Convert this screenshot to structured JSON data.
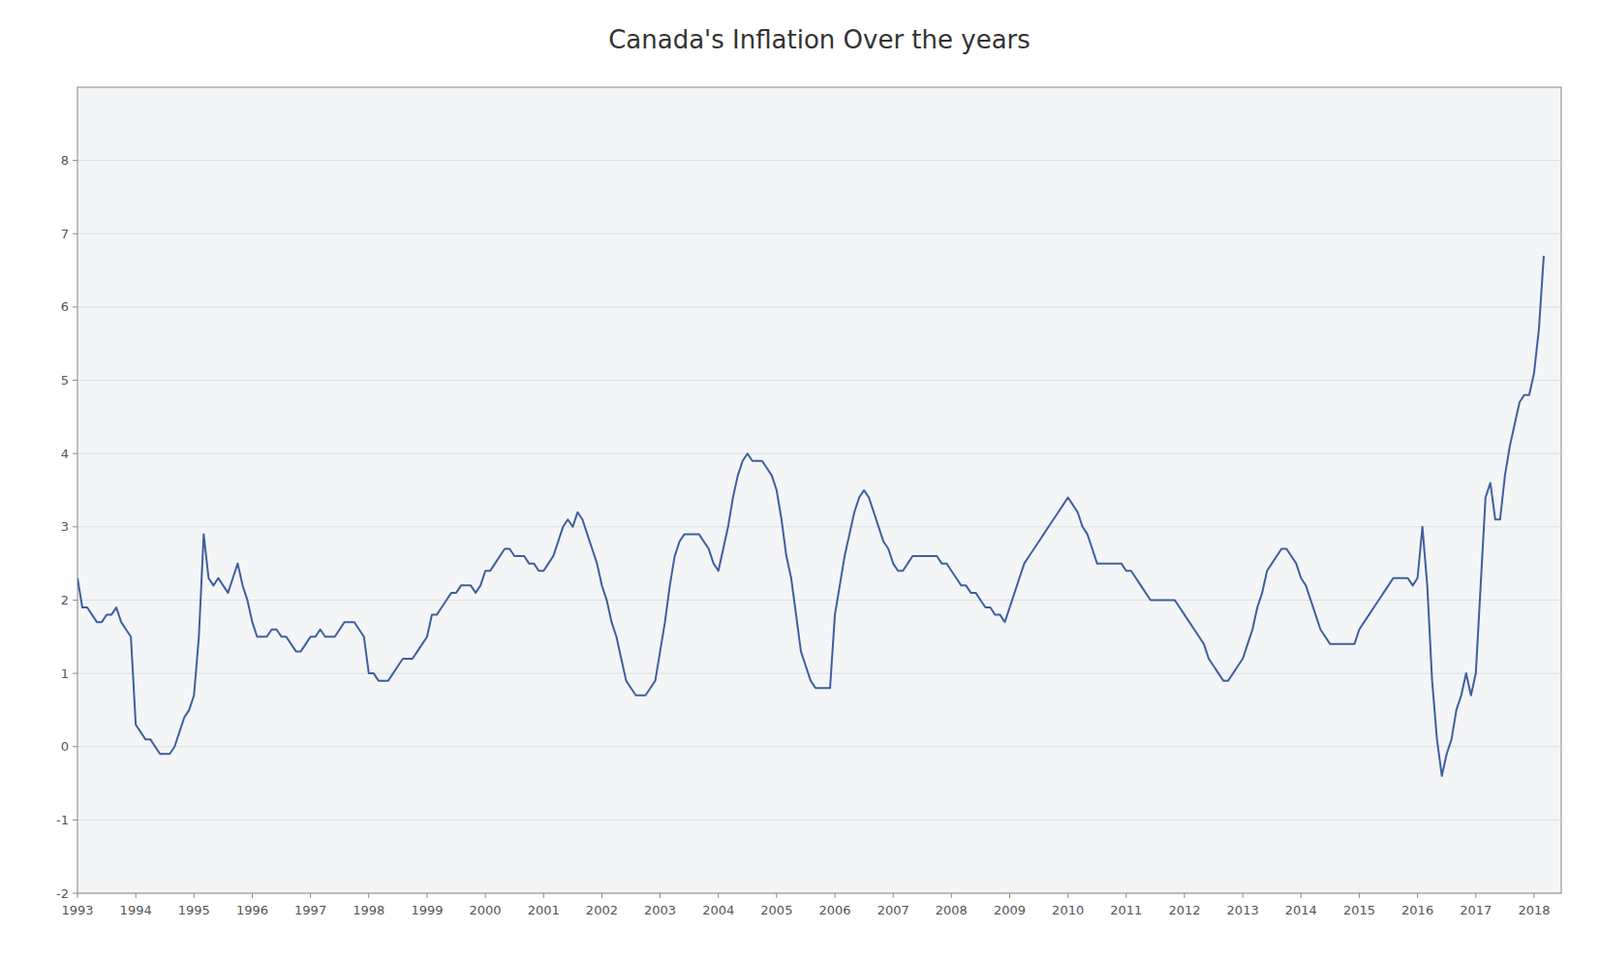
{
  "chart_data": {
    "type": "line",
    "title": "Canada's Inflation Over the years",
    "color": "#3F5F9F",
    "x": [
      1993,
      1993.083333,
      1993.166667,
      1993.25,
      1993.333333,
      1993.416667,
      1993.5,
      1993.583333,
      1993.666667,
      1993.75,
      1993.833333,
      1993.916667,
      1994,
      1994.083333,
      1994.166667,
      1994.25,
      1994.333333,
      1994.416667,
      1994.5,
      1994.583333,
      1994.666667,
      1994.75,
      1994.833333,
      1994.916667,
      1995,
      1995.083333,
      1995.166667,
      1995.25,
      1995.333333,
      1995.416667,
      1995.5,
      1995.583333,
      1995.666667,
      1995.75,
      1995.833333,
      1995.916667,
      1996,
      1996.083333,
      1996.166667,
      1996.25,
      1996.333333,
      1996.416667,
      1996.5,
      1996.583333,
      1996.666667,
      1996.75,
      1996.833333,
      1996.916667,
      1997,
      1997.083333,
      1997.166667,
      1997.25,
      1997.333333,
      1997.416667,
      1997.5,
      1997.583333,
      1997.666667,
      1997.75,
      1997.833333,
      1997.916667,
      1998,
      1998.083333,
      1998.166667,
      1998.25,
      1998.333333,
      1998.416667,
      1998.5,
      1998.583333,
      1998.666667,
      1998.75,
      1998.833333,
      1998.916667,
      1999,
      1999.083333,
      1999.166667,
      1999.25,
      1999.333333,
      1999.416667,
      1999.5,
      1999.583333,
      1999.666667,
      1999.75,
      1999.833333,
      1999.916667,
      2000,
      2000.083333,
      2000.166667,
      2000.25,
      2000.333333,
      2000.416667,
      2000.5,
      2000.583333,
      2000.666667,
      2000.75,
      2000.833333,
      2000.916667,
      2001,
      2001.083333,
      2001.166667,
      2001.25,
      2001.333333,
      2001.416667,
      2001.5,
      2001.583333,
      2001.666667,
      2001.75,
      2001.833333,
      2001.916667,
      2002,
      2002.083333,
      2002.166667,
      2002.25,
      2002.333333,
      2002.416667,
      2002.5,
      2002.583333,
      2002.666667,
      2002.75,
      2002.833333,
      2002.916667,
      2003,
      2003.083333,
      2003.166667,
      2003.25,
      2003.333333,
      2003.416667,
      2003.5,
      2003.583333,
      2003.666667,
      2003.75,
      2003.833333,
      2003.916667,
      2004,
      2004.083333,
      2004.166667,
      2004.25,
      2004.333333,
      2004.416667,
      2004.5,
      2004.583333,
      2004.666667,
      2004.75,
      2004.833333,
      2004.916667,
      2005,
      2005.083333,
      2005.166667,
      2005.25,
      2005.333333,
      2005.416667,
      2005.5,
      2005.583333,
      2005.666667,
      2005.75,
      2005.833333,
      2005.916667,
      2006,
      2006.083333,
      2006.166667,
      2006.25,
      2006.333333,
      2006.416667,
      2006.5,
      2006.583333,
      2006.666667,
      2006.75,
      2006.833333,
      2006.916667,
      2007,
      2007.083333,
      2007.166667,
      2007.25,
      2007.333333,
      2007.416667,
      2007.5,
      2007.583333,
      2007.666667,
      2007.75,
      2007.833333,
      2007.916667,
      2008,
      2008.083333,
      2008.166667,
      2008.25,
      2008.333333,
      2008.416667,
      2008.5,
      2008.583333,
      2008.666667,
      2008.75,
      2008.833333,
      2008.916667,
      2009,
      2009.083333,
      2009.166667,
      2009.25,
      2009.333333,
      2009.416667,
      2009.5,
      2009.583333,
      2009.666667,
      2009.75,
      2009.833333,
      2009.916667,
      2010,
      2010.083333,
      2010.166667,
      2010.25,
      2010.333333,
      2010.416667,
      2010.5,
      2010.583333,
      2010.666667,
      2010.75,
      2010.833333,
      2010.916667,
      2011,
      2011.083333,
      2011.166667,
      2011.25,
      2011.333333,
      2011.416667,
      2011.5,
      2011.583333,
      2011.666667,
      2011.75,
      2011.833333,
      2011.916667,
      2012,
      2012.083333,
      2012.166667,
      2012.25,
      2012.333333,
      2012.416667,
      2012.5,
      2012.583333,
      2012.666667,
      2012.75,
      2012.833333,
      2012.916667,
      2013,
      2013.083333,
      2013.166667,
      2013.25,
      2013.333333,
      2013.416667,
      2013.5,
      2013.583333,
      2013.666667,
      2013.75,
      2013.833333,
      2013.916667,
      2014,
      2014.083333,
      2014.166667,
      2014.25,
      2014.333333,
      2014.416667,
      2014.5,
      2014.583333,
      2014.666667,
      2014.75,
      2014.833333,
      2014.916667,
      2015,
      2015.083333,
      2015.166667,
      2015.25,
      2015.333333,
      2015.416667,
      2015.5,
      2015.583333,
      2015.666667,
      2015.75,
      2015.833333,
      2015.916667,
      2016,
      2016.083333,
      2016.166667,
      2016.25,
      2016.333333,
      2016.416667,
      2016.5,
      2016.583333,
      2016.666667,
      2016.75,
      2016.833333,
      2016.916667,
      2017,
      2017.083333,
      2017.166667,
      2017.25,
      2017.333333,
      2017.416667,
      2017.5,
      2017.583333,
      2017.666667,
      2017.75,
      2017.833333,
      2017.916667,
      2018,
      2018.083333,
      2018.166667
    ],
    "values": [
      2.3,
      1.9,
      1.9,
      1.8,
      1.7,
      1.7,
      1.8,
      1.8,
      1.9,
      1.7,
      1.6,
      1.5,
      0.3,
      0.2,
      0.1,
      0.1,
      0.0,
      -0.1,
      -0.1,
      -0.1,
      0.0,
      0.2,
      0.4,
      0.5,
      0.7,
      1.5,
      2.9,
      2.3,
      2.2,
      2.3,
      2.2,
      2.1,
      2.3,
      2.5,
      2.2,
      2.0,
      1.7,
      1.5,
      1.5,
      1.5,
      1.6,
      1.6,
      1.5,
      1.5,
      1.4,
      1.3,
      1.3,
      1.4,
      1.5,
      1.5,
      1.6,
      1.5,
      1.5,
      1.5,
      1.6,
      1.7,
      1.7,
      1.7,
      1.6,
      1.5,
      1.0,
      1.0,
      0.9,
      0.9,
      0.9,
      1.0,
      1.1,
      1.2,
      1.2,
      1.2,
      1.3,
      1.4,
      1.5,
      1.8,
      1.8,
      1.9,
      2.0,
      2.1,
      2.1,
      2.2,
      2.2,
      2.2,
      2.1,
      2.2,
      2.4,
      2.4,
      2.5,
      2.6,
      2.7,
      2.7,
      2.6,
      2.6,
      2.6,
      2.5,
      2.5,
      2.4,
      2.4,
      2.5,
      2.6,
      2.8,
      3.0,
      3.1,
      3.0,
      3.2,
      3.1,
      2.9,
      2.7,
      2.5,
      2.2,
      2.0,
      1.7,
      1.5,
      1.2,
      0.9,
      0.8,
      0.7,
      0.7,
      0.7,
      0.8,
      0.9,
      1.3,
      1.7,
      2.2,
      2.6,
      2.8,
      2.9,
      2.9,
      2.9,
      2.9,
      2.8,
      2.7,
      2.5,
      2.4,
      2.7,
      3.0,
      3.4,
      3.7,
      3.9,
      4.0,
      3.9,
      3.9,
      3.9,
      3.8,
      3.7,
      3.5,
      3.1,
      2.6,
      2.3,
      1.8,
      1.3,
      1.1,
      0.9,
      0.8,
      0.8,
      0.8,
      0.8,
      1.8,
      2.2,
      2.6,
      2.9,
      3.2,
      3.4,
      3.5,
      3.4,
      3.2,
      3.0,
      2.8,
      2.7,
      2.5,
      2.4,
      2.4,
      2.5,
      2.6,
      2.6,
      2.6,
      2.6,
      2.6,
      2.6,
      2.5,
      2.5,
      2.4,
      2.3,
      2.2,
      2.2,
      2.1,
      2.1,
      2.0,
      1.9,
      1.9,
      1.8,
      1.8,
      1.7,
      1.9,
      2.1,
      2.3,
      2.5,
      2.6,
      2.7,
      2.8,
      2.9,
      3.0,
      3.1,
      3.2,
      3.3,
      3.4,
      3.3,
      3.2,
      3.0,
      2.9,
      2.7,
      2.5,
      2.5,
      2.5,
      2.5,
      2.5,
      2.5,
      2.4,
      2.4,
      2.3,
      2.2,
      2.1,
      2.0,
      2.0,
      2.0,
      2.0,
      2.0,
      2.0,
      1.9,
      1.8,
      1.7,
      1.6,
      1.5,
      1.4,
      1.2,
      1.1,
      1.0,
      0.9,
      0.9,
      1.0,
      1.1,
      1.2,
      1.4,
      1.6,
      1.9,
      2.1,
      2.4,
      2.5,
      2.6,
      2.7,
      2.7,
      2.6,
      2.5,
      2.3,
      2.2,
      2.0,
      1.8,
      1.6,
      1.5,
      1.4,
      1.4,
      1.4,
      1.4,
      1.4,
      1.4,
      1.6,
      1.7,
      1.8,
      1.9,
      2.0,
      2.1,
      2.2,
      2.3,
      2.3,
      2.3,
      2.3,
      2.2,
      2.3,
      3.0,
      2.2,
      0.9,
      0.1,
      -0.4,
      -0.1,
      0.1,
      0.5,
      0.7,
      1.0,
      0.7,
      1.0,
      2.2,
      3.4,
      3.6,
      3.1,
      3.1,
      3.7,
      4.1,
      4.4,
      4.7,
      4.8,
      4.8,
      5.1,
      5.7,
      6.7
    ],
    "xlim": [
      1993,
      2018.466667
    ],
    "xticks": [
      1993,
      1994,
      1995,
      1996,
      1997,
      1998,
      1999,
      2000,
      2001,
      2002,
      2003,
      2004,
      2005,
      2006,
      2007,
      2008,
      2009,
      2010,
      2011,
      2012,
      2013,
      2014,
      2015,
      2016,
      2017,
      2018
    ],
    "ylim": [
      -2,
      9
    ],
    "yticks": [
      -2,
      -1,
      0,
      1,
      2,
      3,
      4,
      5,
      6,
      7,
      8
    ],
    "grid": true
  }
}
